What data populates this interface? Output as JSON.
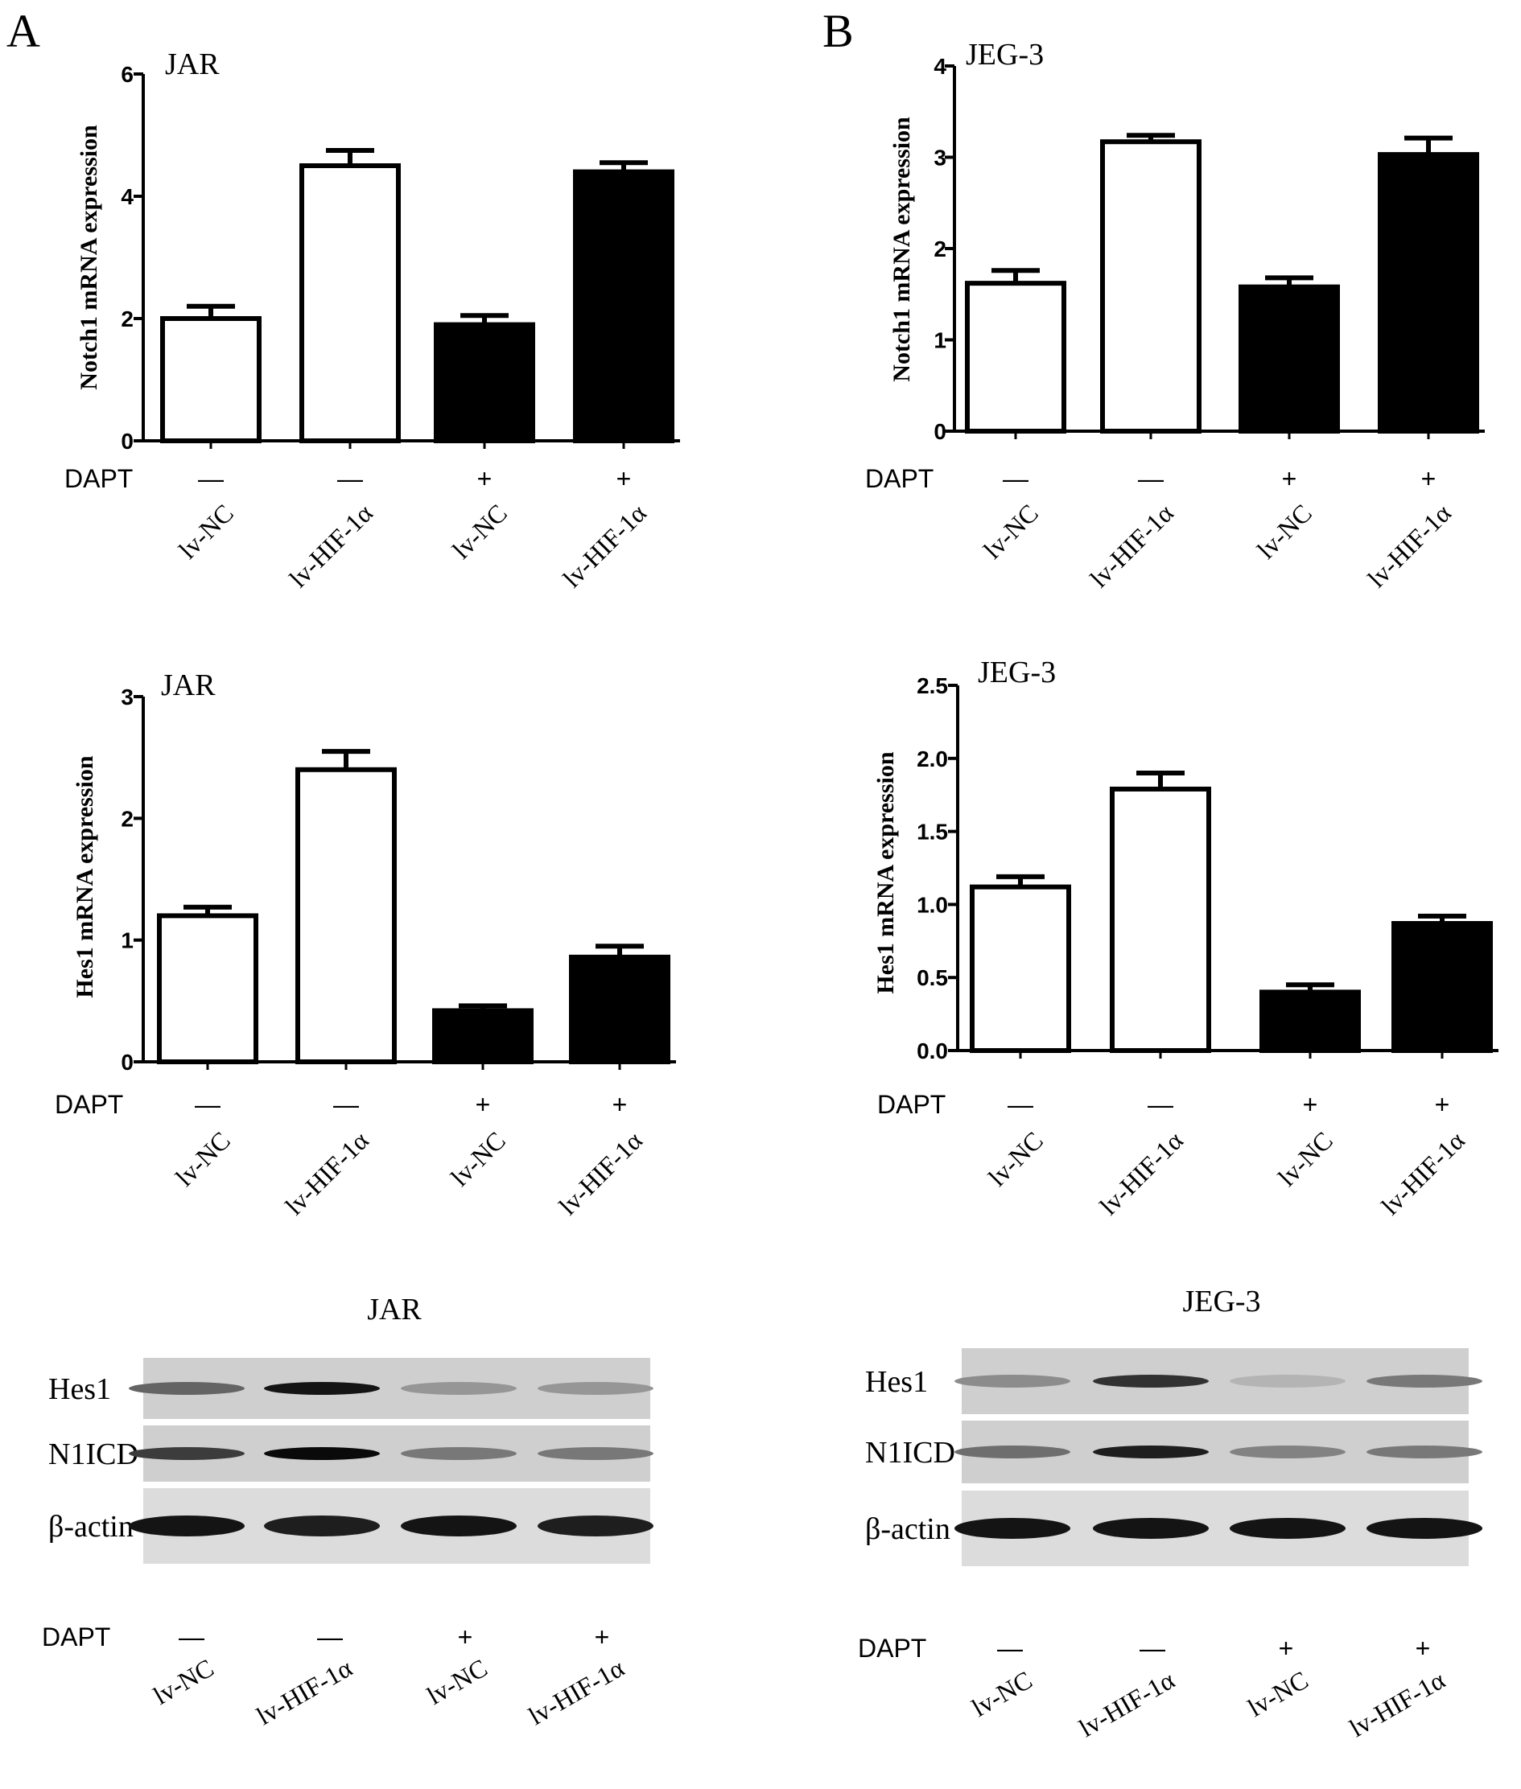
{
  "panels": {
    "A": {
      "label": "A"
    },
    "B": {
      "label": "B"
    }
  },
  "conditions": {
    "dapt_label": "DAPT",
    "dapt_values": [
      "—",
      "—",
      "+",
      "+"
    ],
    "groups": [
      "lv-NC",
      "lv-HIF-1α",
      "lv-NC",
      "lv-HIF-1α"
    ]
  },
  "chart_data": [
    {
      "id": "A-notch1",
      "type": "bar",
      "title": "JAR",
      "ylabel": "Notch1 mRNA expression",
      "categories": [
        "lv-NC",
        "lv-HIF-1α",
        "lv-NC",
        "lv-HIF-1α"
      ],
      "values": [
        2.0,
        4.5,
        1.9,
        4.4
      ],
      "errors": [
        0.2,
        0.25,
        0.15,
        0.15
      ],
      "fills": [
        "#ffffff",
        "#ffffff",
        "#000000",
        "#000000"
      ],
      "ylim": [
        0,
        6
      ],
      "yticks": [
        "0",
        "2",
        "4",
        "6"
      ]
    },
    {
      "id": "B-notch1",
      "type": "bar",
      "title": "JEG-3",
      "ylabel": "Notch1 mRNA expression",
      "categories": [
        "lv-NC",
        "lv-HIF-1α",
        "lv-NC",
        "lv-HIF-1α"
      ],
      "values": [
        1.62,
        3.17,
        1.58,
        3.03
      ],
      "errors": [
        0.14,
        0.07,
        0.1,
        0.18
      ],
      "fills": [
        "#ffffff",
        "#ffffff",
        "#000000",
        "#000000"
      ],
      "ylim": [
        0,
        4
      ],
      "yticks": [
        "0",
        "1",
        "2",
        "3",
        "4"
      ]
    },
    {
      "id": "A-hes1",
      "type": "bar",
      "title": "JAR",
      "ylabel": "Hes1 mRNA expression",
      "categories": [
        "lv-NC",
        "lv-HIF-1α",
        "lv-NC",
        "lv-HIF-1α"
      ],
      "values": [
        1.2,
        2.4,
        0.42,
        0.86
      ],
      "errors": [
        0.07,
        0.15,
        0.04,
        0.09
      ],
      "fills": [
        "#ffffff",
        "#ffffff",
        "#000000",
        "#000000"
      ],
      "ylim": [
        0,
        3
      ],
      "yticks": [
        "0",
        "1",
        "2",
        "3"
      ]
    },
    {
      "id": "B-hes1",
      "type": "bar",
      "title": "JEG-3",
      "ylabel": "Hes1 mRNA expression",
      "categories": [
        "lv-NC",
        "lv-HIF-1α",
        "lv-NC",
        "lv-HIF-1α"
      ],
      "values": [
        1.12,
        1.79,
        0.4,
        0.87
      ],
      "errors": [
        0.07,
        0.11,
        0.05,
        0.05
      ],
      "fills": [
        "#ffffff",
        "#ffffff",
        "#000000",
        "#000000"
      ],
      "ylim": [
        0,
        2.5
      ],
      "yticks": [
        "0.0",
        "0.5",
        "1.0",
        "1.5",
        "2.0",
        "2.5"
      ]
    }
  ],
  "blots": [
    {
      "id": "A-blot",
      "title": "JAR",
      "rows": [
        {
          "label": "Hes1",
          "intensity": [
            0.55,
            0.95,
            0.3,
            0.3
          ]
        },
        {
          "label": "N1ICD",
          "intensity": [
            0.75,
            1.0,
            0.45,
            0.45
          ]
        },
        {
          "label": "β-actin",
          "intensity": [
            0.95,
            0.9,
            0.95,
            0.9
          ]
        }
      ]
    },
    {
      "id": "B-blot",
      "title": "JEG-3",
      "rows": [
        {
          "label": "Hes1",
          "intensity": [
            0.35,
            0.8,
            0.15,
            0.45
          ]
        },
        {
          "label": "N1ICD",
          "intensity": [
            0.5,
            0.9,
            0.4,
            0.45
          ]
        },
        {
          "label": "β-actin",
          "intensity": [
            0.95,
            0.95,
            0.95,
            0.95
          ]
        }
      ]
    }
  ]
}
